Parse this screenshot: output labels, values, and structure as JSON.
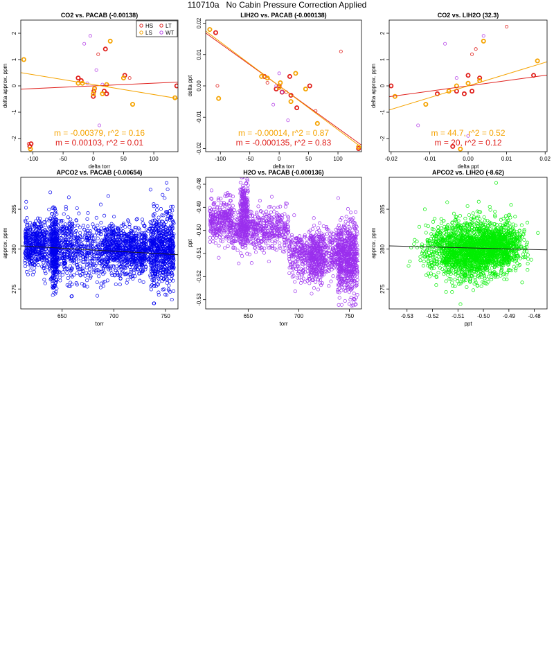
{
  "page": {
    "title": "110710a   No Cabin Pressure Correction Applied"
  },
  "chart_data": [
    {
      "id": "co2-pacab",
      "type": "scatter",
      "title": "CO2 vs. PACAB (-0.00138)",
      "xlabel": "delta torr",
      "ylabel": "delta approx. ppm",
      "xlim": [
        -120,
        140
      ],
      "ylim": [
        -2.5,
        2.5
      ],
      "xticks": [
        -100,
        -50,
        0,
        50,
        100
      ],
      "xtick_labels": [
        "-100",
        "-50",
        "0",
        "50",
        "100"
      ],
      "yticks": [
        -2,
        -1,
        0,
        1,
        2
      ],
      "ytick_labels": [
        "-2",
        "-1",
        "0",
        "1",
        "2"
      ],
      "legend": {
        "position": "top-right",
        "entries": [
          {
            "label": "HS",
            "color": "#e0201c"
          },
          {
            "label": "LT",
            "color": "#e0201c"
          },
          {
            "label": "LS",
            "color": "#f5a300"
          },
          {
            "label": "WT",
            "color": "#b84ae8"
          }
        ]
      },
      "series": [
        {
          "name": "HS",
          "color": "#e0201c",
          "bold": true,
          "x": [
            -105,
            -103,
            -25,
            -20,
            0,
            1,
            2,
            18,
            20,
            22,
            52,
            138
          ],
          "y": [
            -2.3,
            -2.2,
            0.3,
            0.2,
            -0.4,
            -0.2,
            -0.1,
            -0.2,
            1.4,
            -0.3,
            0.4,
            0.0
          ]
        },
        {
          "name": "LT",
          "color": "#e0201c",
          "bold": false,
          "x": [
            -107,
            8,
            60
          ],
          "y": [
            -2.2,
            1.2,
            0.3
          ]
        },
        {
          "name": "LS",
          "color": "#f5a300",
          "bold": true,
          "x": [
            -115,
            -104,
            -25,
            -18,
            0,
            2,
            15,
            22,
            28,
            50,
            65,
            135
          ],
          "y": [
            1.0,
            -2.4,
            0.1,
            0.1,
            -0.3,
            -0.1,
            -0.3,
            0.05,
            1.7,
            0.3,
            -0.7,
            -0.45
          ]
        },
        {
          "name": "WT",
          "color": "#b84ae8",
          "bold": false,
          "x": [
            -10,
            -5,
            5,
            10,
            15,
            -15
          ],
          "y": [
            0.1,
            1.9,
            0.6,
            -1.5,
            0.05,
            1.6
          ]
        }
      ],
      "fits": [
        {
          "color": "#e0201c",
          "slope": 0.00103,
          "intercept": 0.0
        },
        {
          "color": "#f5a300",
          "slope": -0.00379,
          "intercept": 0.05
        }
      ],
      "annotations": [
        {
          "text": "m = -0.00379, r^2 = 0.16",
          "color": "#f5a300"
        },
        {
          "text": "m = 0.00103, r^2 = 0.01",
          "color": "#e0201c"
        }
      ]
    },
    {
      "id": "lih2o-pacab",
      "type": "scatter",
      "title": "LIH2O vs. PACAB (-0.000138)",
      "xlabel": "delta torr",
      "ylabel": "delta ppt",
      "xlim": [
        -125,
        140
      ],
      "ylim": [
        -0.021,
        0.021
      ],
      "xticks": [
        -100,
        -50,
        0,
        50,
        100
      ],
      "xtick_labels": [
        "-100",
        "-50",
        "0",
        "50",
        "100"
      ],
      "yticks": [
        -0.02,
        -0.01,
        0.0,
        0.01,
        0.02
      ],
      "ytick_labels": [
        "-0.02",
        "-0.01",
        "0.00",
        "0.01",
        "0.02"
      ],
      "series": [
        {
          "name": "HS",
          "color": "#e0201c",
          "bold": true,
          "x": [
            -108,
            -25,
            -5,
            0,
            5,
            18,
            20,
            30,
            52,
            135
          ],
          "y": [
            0.017,
            0.003,
            -0.001,
            0.0,
            -0.002,
            0.003,
            -0.003,
            -0.007,
            0.0,
            -0.02
          ]
        },
        {
          "name": "LT",
          "color": "#e0201c",
          "bold": false,
          "x": [
            -105,
            -20,
            12,
            62,
            105
          ],
          "y": [
            0.0,
            0.001,
            -0.002,
            -0.008,
            0.011
          ]
        },
        {
          "name": "LS",
          "color": "#f5a300",
          "bold": true,
          "x": [
            -118,
            -103,
            -30,
            -20,
            0,
            2,
            20,
            28,
            45,
            65,
            135
          ],
          "y": [
            0.018,
            -0.004,
            0.003,
            0.0025,
            -0.0005,
            0.001,
            -0.005,
            0.004,
            -0.001,
            -0.012,
            -0.0195
          ]
        },
        {
          "name": "WT",
          "color": "#b84ae8",
          "bold": false,
          "x": [
            -10,
            0,
            5,
            -5,
            15
          ],
          "y": [
            -0.006,
            0.004,
            -0.002,
            0.0,
            -0.011
          ]
        }
      ],
      "fits": [
        {
          "color": "#e0201c",
          "slope": -0.000135,
          "intercept": 0.0
        },
        {
          "color": "#f5a300",
          "slope": -0.00014,
          "intercept": 0.0
        }
      ],
      "annotations": [
        {
          "text": "m = -0.00014, r^2 = 0.87",
          "color": "#f5a300"
        },
        {
          "text": "m = -0.000135, r^2 = 0.83",
          "color": "#e0201c"
        }
      ]
    },
    {
      "id": "co2-lih2o",
      "type": "scatter",
      "title": "CO2 vs. LIH2O (32.3)",
      "xlabel": "delta ppt",
      "ylabel": "delta approx. ppm",
      "xlim": [
        -0.0205,
        0.0205
      ],
      "ylim": [
        -2.5,
        2.5
      ],
      "xticks": [
        -0.02,
        -0.01,
        0.0,
        0.01,
        0.02
      ],
      "xtick_labels": [
        "-0.02",
        "-0.01",
        "0.00",
        "0.01",
        "0.02"
      ],
      "yticks": [
        -2,
        -1,
        0,
        1,
        2
      ],
      "ytick_labels": [
        "-2",
        "-1",
        "0",
        "1",
        "2"
      ],
      "series": [
        {
          "name": "HS",
          "color": "#e0201c",
          "bold": true,
          "x": [
            -0.02,
            -0.008,
            -0.004,
            -0.003,
            -0.001,
            0.0,
            0.001,
            0.003,
            0.017
          ],
          "y": [
            0.0,
            -0.3,
            -2.3,
            -0.2,
            -0.3,
            0.4,
            -0.2,
            0.3,
            0.4
          ]
        },
        {
          "name": "LT",
          "color": "#e0201c",
          "bold": false,
          "x": [
            0.001,
            0.002,
            0.01
          ],
          "y": [
            1.2,
            1.4,
            2.25
          ]
        },
        {
          "name": "LS",
          "color": "#f5a300",
          "bold": true,
          "x": [
            -0.019,
            -0.011,
            -0.005,
            -0.003,
            -0.002,
            0.0,
            0.003,
            0.004,
            0.018
          ],
          "y": [
            -0.4,
            -0.7,
            -0.2,
            0.0,
            -2.4,
            0.1,
            0.2,
            1.7,
            0.95
          ]
        },
        {
          "name": "WT",
          "color": "#b84ae8",
          "bold": false,
          "x": [
            -0.013,
            -0.006,
            -0.003,
            0.0,
            0.004
          ],
          "y": [
            -1.5,
            1.6,
            0.3,
            -1.9,
            1.9
          ]
        }
      ],
      "fits": [
        {
          "color": "#e0201c",
          "slope": 20,
          "intercept": 0.0
        },
        {
          "color": "#f5a300",
          "slope": 44.7,
          "intercept": 0.0
        }
      ],
      "annotations": [
        {
          "text": "m = 44.7, r^2 = 0.52",
          "color": "#f5a300"
        },
        {
          "text": "m = 20, r^2 = 0.12",
          "color": "#e0201c"
        }
      ]
    },
    {
      "id": "apco2-pacab",
      "type": "scatter",
      "title": "APCO2 vs. PACAB (-0.00654)",
      "xlabel": "torr",
      "ylabel": "approx. ppm",
      "xlim": [
        610,
        762
      ],
      "ylim": [
        272.5,
        289
      ],
      "xticks": [
        650,
        700,
        750
      ],
      "xtick_labels": [
        "650",
        "700",
        "750"
      ],
      "yticks": [
        275,
        280,
        285
      ],
      "ytick_labels": [
        "275",
        "280",
        "285"
      ],
      "color": "#0000ee",
      "cloud_seed": 11,
      "cloud": [
        {
          "n": 380,
          "x": [
            614,
            632
          ],
          "y_mean": 280.6,
          "y_sd": 1.5
        },
        {
          "n": 420,
          "x": [
            632,
            660
          ],
          "y_mean": 280.3,
          "y_sd": 2.2
        },
        {
          "n": 240,
          "x": [
            640,
            645
          ],
          "y_mean": 279.8,
          "y_sd": 2.3
        },
        {
          "n": 640,
          "x": [
            660,
            730
          ],
          "y_mean": 279.9,
          "y_sd": 1.8
        },
        {
          "n": 450,
          "x": [
            690,
            735
          ],
          "y_mean": 279.8,
          "y_sd": 1.3
        },
        {
          "n": 650,
          "x": [
            735,
            758
          ],
          "y_mean": 279.9,
          "y_sd": 2.3
        }
      ],
      "extra_points": [
        {
          "x": 751,
          "y": 288.3
        },
        {
          "x": 752,
          "y": 287.5
        },
        {
          "x": 739,
          "y": 273.2
        }
      ],
      "fit": {
        "color": "#202020",
        "x": [
          610,
          762
        ],
        "y": [
          280.4,
          279.3
        ]
      }
    },
    {
      "id": "h2o-pacab",
      "type": "scatter",
      "title": "H2O vs. PACAB (-0.000136)",
      "xlabel": "torr",
      "ylabel": "ppt",
      "xlim": [
        608,
        762
      ],
      "ylim": [
        -0.534,
        -0.477
      ],
      "xticks": [
        650,
        700,
        750
      ],
      "xtick_labels": [
        "650",
        "700",
        "750"
      ],
      "yticks": [
        -0.53,
        -0.52,
        -0.51,
        -0.5,
        -0.49,
        -0.48
      ],
      "ytick_labels": [
        "-0.53",
        "-0.52",
        "-0.51",
        "-0.50",
        "-0.49",
        "-0.48"
      ],
      "color": "#9b30ee",
      "cloud_seed": 23,
      "cloud": [
        {
          "n": 320,
          "x": [
            612,
            635
          ],
          "y_mean": -0.4955,
          "y_sd": 0.0045
        },
        {
          "n": 260,
          "x": [
            642,
            650
          ],
          "y_mean": -0.492,
          "y_sd": 0.0065
        },
        {
          "n": 500,
          "x": [
            635,
            690
          ],
          "y_mean": -0.5,
          "y_sd": 0.0045
        },
        {
          "n": 450,
          "x": [
            690,
            738
          ],
          "y_mean": -0.51,
          "y_sd": 0.0055
        },
        {
          "n": 250,
          "x": [
            710,
            725
          ],
          "y_mean": -0.512,
          "y_sd": 0.005
        },
        {
          "n": 650,
          "x": [
            738,
            758
          ],
          "y_mean": -0.512,
          "y_sd": 0.008
        }
      ],
      "extra_points": [
        {
          "x": 648,
          "y": -0.4795
        },
        {
          "x": 751,
          "y": -0.53
        }
      ],
      "fit": {
        "color": "#9b30ee",
        "x": [
          612,
          760
        ],
        "y": [
          -0.4935,
          -0.5135
        ]
      }
    },
    {
      "id": "apco2-lih2o",
      "type": "scatter",
      "title": "APCO2 vs. LIH2O (-8.62)",
      "xlabel": "ppt",
      "ylabel": "approx. ppm",
      "xlim": [
        -0.537,
        -0.475
      ],
      "ylim": [
        272.5,
        289
      ],
      "xticks": [
        -0.53,
        -0.52,
        -0.51,
        -0.5,
        -0.49,
        -0.48
      ],
      "xtick_labels": [
        "-0.53",
        "-0.52",
        "-0.51",
        "-0.50",
        "-0.49",
        "-0.48"
      ],
      "yticks": [
        275,
        280,
        285
      ],
      "ytick_labels": [
        "275",
        "280",
        "285"
      ],
      "color": "#00ee00",
      "cloud_seed": 37,
      "cloud": [
        {
          "n": 1500,
          "x_mean": -0.504,
          "x_sd": 0.0075,
          "y_mean": 279.9,
          "y_sd": 1.8
        },
        {
          "n": 600,
          "x_mean": -0.494,
          "x_sd": 0.0045,
          "y_mean": 280.4,
          "y_sd": 1.3
        },
        {
          "n": 300,
          "x_mean": -0.514,
          "x_sd": 0.005,
          "y_mean": 279.7,
          "y_sd": 1.6
        }
      ],
      "extra_points": [
        {
          "x": -0.509,
          "y": 273.1
        },
        {
          "x": -0.495,
          "y": 288.3
        },
        {
          "x": -0.523,
          "y": 285.0
        }
      ],
      "fit": {
        "color": "#202020",
        "x": [
          -0.537,
          -0.475
        ],
        "y": [
          280.4,
          279.9
        ]
      }
    }
  ]
}
